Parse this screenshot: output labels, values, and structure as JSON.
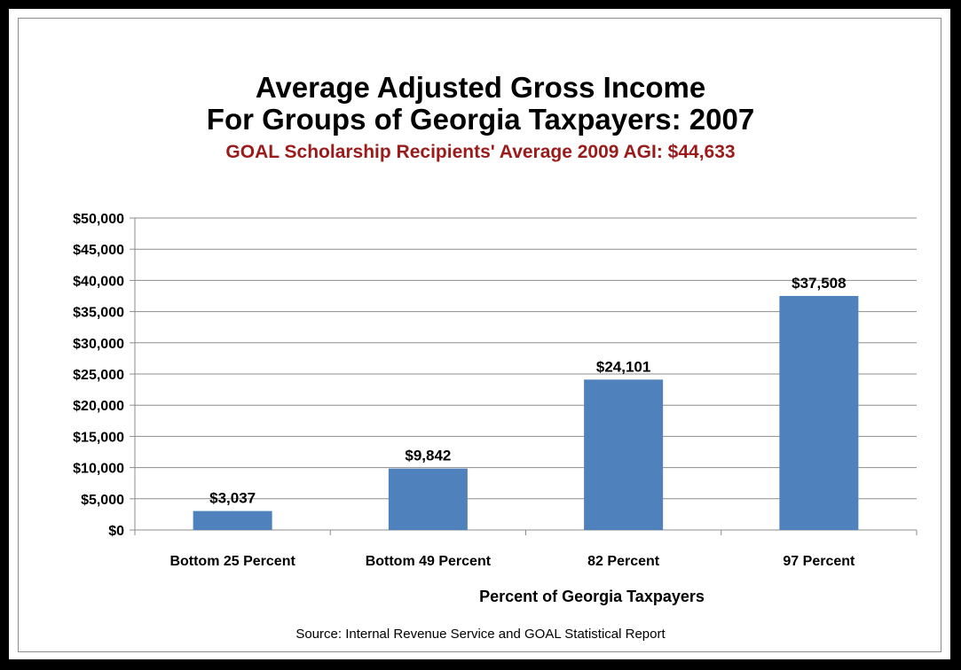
{
  "chart_data": {
    "type": "bar",
    "title_line1": "Average Adjusted Gross Income",
    "title_line2": "For Groups of Georgia Taxpayers: 2007",
    "subtitle": "GOAL Scholarship Recipients' Average 2009 AGI: $44,633",
    "xlabel": "Percent of Georgia Taxpayers",
    "ylabel": "",
    "source": "Source: Internal Revenue Service and GOAL Statistical Report",
    "categories": [
      "Bottom 25 Percent",
      "Bottom 49 Percent",
      "82 Percent",
      "97 Percent"
    ],
    "values": [
      3037,
      9842,
      24101,
      37508
    ],
    "data_labels": [
      "$3,037",
      "$9,842",
      "$24,101",
      "$37,508"
    ],
    "ylim": [
      0,
      50000
    ],
    "y_ticks": [
      0,
      5000,
      10000,
      15000,
      20000,
      25000,
      30000,
      35000,
      40000,
      45000,
      50000
    ],
    "y_tick_labels": [
      "$0",
      "$5,000",
      "$10,000",
      "$15,000",
      "$20,000",
      "$25,000",
      "$30,000",
      "$35,000",
      "$40,000",
      "$45,000",
      "$50,000"
    ],
    "grid": true,
    "legend": "none",
    "bar_color": "#4f81bd"
  }
}
